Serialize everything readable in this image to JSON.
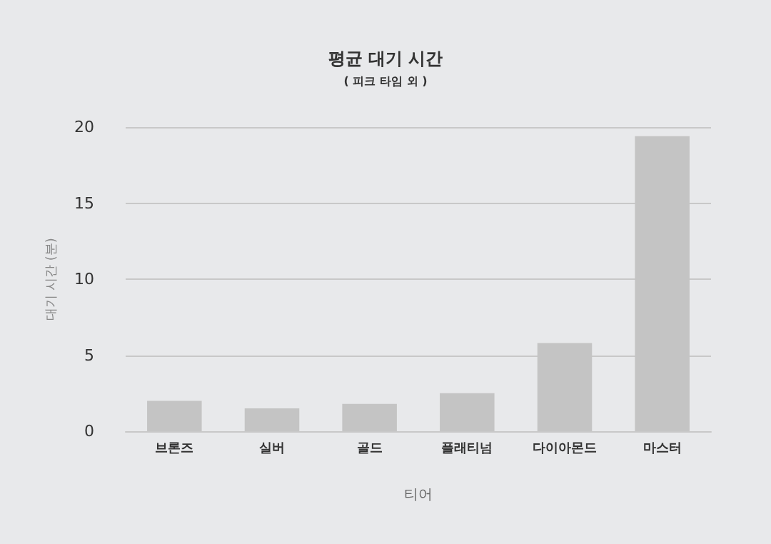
{
  "chart_data": {
    "type": "bar",
    "title": "평균 대기 시간",
    "subtitle": "( 피크 타임 외 )",
    "xlabel": "티어",
    "ylabel": "대기 시간 (분)",
    "categories": [
      "브론즈",
      "실버",
      "골드",
      "플래티넘",
      "다이아몬드",
      "마스터"
    ],
    "values": [
      2.0,
      1.5,
      1.8,
      2.5,
      5.8,
      19.4
    ],
    "color": "#c4c4c4",
    "ylim": [
      0,
      20
    ],
    "yticks": [
      0,
      5,
      10,
      15,
      20
    ],
    "grid": "y"
  }
}
